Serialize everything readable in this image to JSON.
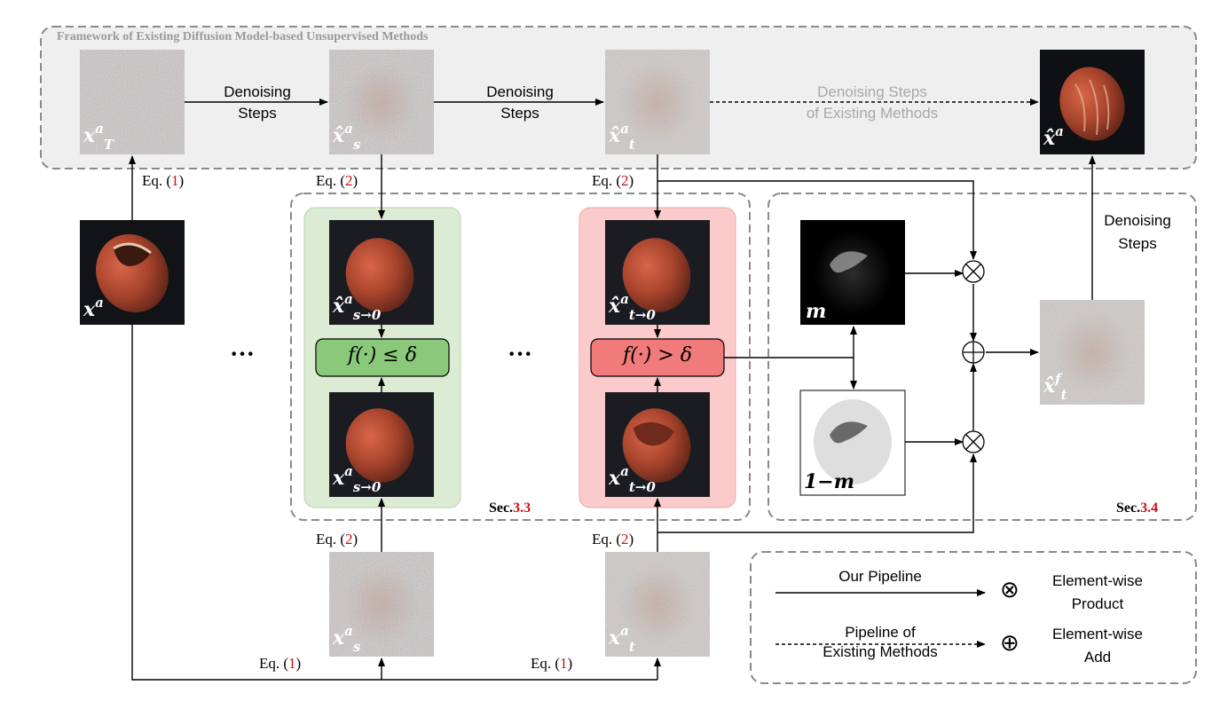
{
  "framework_title": "Framework of Existing Diffusion Model-based Unsupervised Methods",
  "top_row": {
    "denoising_label_1": "Denoising\nSteps",
    "denoising_label_2": "Denoising\nSteps",
    "existing_steps_label": "Denoising Steps\nof Existing Methods"
  },
  "image_labels": {
    "xT": {
      "base": "x",
      "sup": "a",
      "sub": "T"
    },
    "xs_hat": {
      "base": "x̂",
      "sup": "a",
      "sub": "s"
    },
    "xt_hat": {
      "base": "x̂",
      "sup": "a",
      "sub": "t"
    },
    "x_hat_final": {
      "base": "x̂",
      "sup": "a",
      "sub": ""
    },
    "x_input": {
      "base": "x",
      "sup": "a",
      "sub": ""
    },
    "xs0_hat": {
      "base": "x̂",
      "sup": "a",
      "sub": "s→0"
    },
    "xs0": {
      "base": "x",
      "sup": "a",
      "sub": "s→0"
    },
    "xt0_hat": {
      "base": "x̂",
      "sup": "a",
      "sub": "t→0"
    },
    "xt0": {
      "base": "x",
      "sup": "a",
      "sub": "t→0"
    },
    "xs": {
      "base": "x",
      "sup": "a",
      "sub": "s"
    },
    "xt": {
      "base": "x",
      "sup": "a",
      "sub": "t"
    },
    "mask": {
      "base": "m",
      "sup": "",
      "sub": ""
    },
    "inv_mask": {
      "base": "1−m",
      "sup": "",
      "sub": ""
    },
    "xtf_hat": {
      "base": "x̂",
      "sup": "f",
      "sub": "t"
    }
  },
  "equations": {
    "eq1_top": {
      "prefix": "Eq. (",
      "num": "1",
      "suffix": ")"
    },
    "eq2_s_top": {
      "prefix": "Eq. (",
      "num": "2",
      "suffix": ")"
    },
    "eq2_t_top": {
      "prefix": "Eq. (",
      "num": "2",
      "suffix": ")"
    },
    "eq2_s_bottom": {
      "prefix": "Eq. (",
      "num": "2",
      "suffix": ")"
    },
    "eq2_t_bottom": {
      "prefix": "Eq. (",
      "num": "2",
      "suffix": ")"
    },
    "eq1_bottom_left": {
      "prefix": "Eq. (",
      "num": "1",
      "suffix": ")"
    },
    "eq1_bottom_right": {
      "prefix": "Eq. (",
      "num": "1",
      "suffix": ")"
    }
  },
  "conditions": {
    "green": "f(·) ≤ δ",
    "red": "f(·) > δ"
  },
  "ellipsis": "···",
  "sections": {
    "sec33": {
      "prefix": "Sec.",
      "num": "3.3"
    },
    "sec34": {
      "prefix": "Sec.",
      "num": "3.4"
    }
  },
  "right_denoising_label": "Denoising\nSteps",
  "legend": {
    "our_pipeline": "Our Pipeline",
    "existing_pipeline": "Pipeline of\nExisting Methods",
    "product_label": "Element-wise\nProduct",
    "add_label": "Element-wise\nAdd",
    "product_symbol": "⊗",
    "add_symbol": "⊕"
  },
  "colors": {
    "green_panel": "#dcebd4",
    "green_box": "#8bc97a",
    "red_panel": "#fbcaca",
    "red_box": "#f17a7a",
    "frame_gray": "#efefef",
    "red_text": "#cc1111"
  }
}
